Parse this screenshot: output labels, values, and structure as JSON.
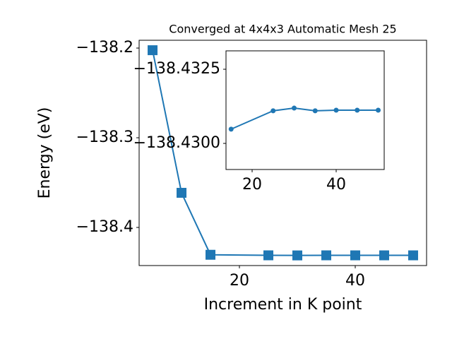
{
  "chart_data": [
    {
      "type": "line",
      "title": "Converged at 4x4x3 Automatic Mesh 25",
      "x_label": "Increment in K point",
      "y_label": "Energy (eV)",
      "marker": "square",
      "series": [
        {
          "color": "#1f77b4",
          "x": [
            5,
            10,
            15,
            25,
            30,
            35,
            40,
            45,
            50
          ],
          "values": [
            -138.2024,
            -138.3614,
            -138.43048,
            -138.4311,
            -138.43119,
            -138.4311,
            -138.43112,
            -138.43112,
            -138.43112
          ]
        }
      ],
      "xlim": [
        2.68,
        52.32
      ],
      "xticks": [
        20,
        40
      ],
      "ylim": [
        -138.4425,
        -138.1913
      ],
      "yticks": [
        {
          "value": -138.4,
          "label": "−138.4"
        },
        {
          "value": -138.3,
          "label": "−138.3"
        },
        {
          "value": -138.2,
          "label": "−138.2"
        }
      ]
    },
    {
      "type": "line",
      "marker": "circle",
      "series": [
        {
          "color": "#1f77b4",
          "x": [
            15,
            25,
            30,
            35,
            40,
            45,
            50
          ],
          "values": [
            -138.43048,
            -138.4311,
            -138.43119,
            -138.4311,
            -138.43112,
            -138.43112,
            -138.43112
          ]
        }
      ],
      "xlim": [
        13.78,
        51.43
      ],
      "xticks": [
        20,
        40
      ],
      "ylim": [
        -138.42912,
        -138.43312
      ],
      "yticks": [
        {
          "value": -138.43,
          "label": "−138.4300"
        },
        {
          "value": -138.4325,
          "label": "−138.4325"
        }
      ]
    }
  ]
}
